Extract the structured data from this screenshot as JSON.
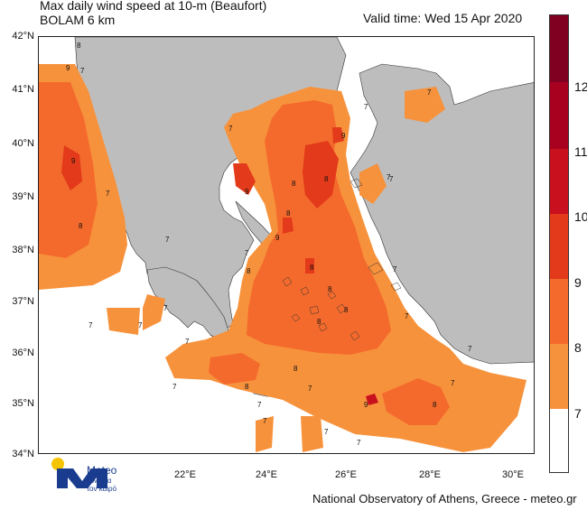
{
  "title": {
    "line1": "Max daily wind speed at 10-m (Beaufort)",
    "line2": "BOLAM 6 km"
  },
  "valid_time": "Valid time: Wed 15 Apr 2020",
  "lat_labels": [
    "42°N",
    "41°N",
    "40°N",
    "39°N",
    "38°N",
    "37°N",
    "36°N",
    "35°N",
    "34°N"
  ],
  "lon_labels": [
    "22°E",
    "24°E",
    "26°E",
    "28°E",
    "30°E"
  ],
  "colorbar": {
    "labels": [
      "12",
      "11",
      "10",
      "9",
      "8",
      "7"
    ],
    "colors": [
      "#7f0020",
      "#a8001f",
      "#c8101e",
      "#e23a1a",
      "#f46a2c",
      "#f7923c",
      "#ffffff"
    ]
  },
  "map_colors": {
    "land": "#bdbdbd",
    "sea_calm": "#ffffff",
    "bf7": "#f7923c",
    "bf8": "#f46a2c",
    "bf9": "#e23a1a",
    "bf10": "#c8101e"
  },
  "contour_labels": [
    "8",
    "9",
    "7",
    "9",
    "8",
    "7",
    "9",
    "8",
    "7",
    "9",
    "7",
    "8",
    "7",
    "7",
    "9",
    "8",
    "7",
    "8",
    "8",
    "7",
    "8",
    "7",
    "8",
    "8",
    "7",
    "7",
    "7",
    "7",
    "8",
    "9",
    "8",
    "7",
    "8",
    "7",
    "7",
    "7",
    "7",
    "7",
    "7",
    "7",
    "7",
    "7"
  ],
  "footer": "National Observatory of Athens, Greece - meteo.gr",
  "logo": {
    "name": "Meteo",
    "tagline_line1": "Όλα για",
    "tagline_line2": "τον καιρό",
    "icon": "meteo-logo-icon"
  }
}
